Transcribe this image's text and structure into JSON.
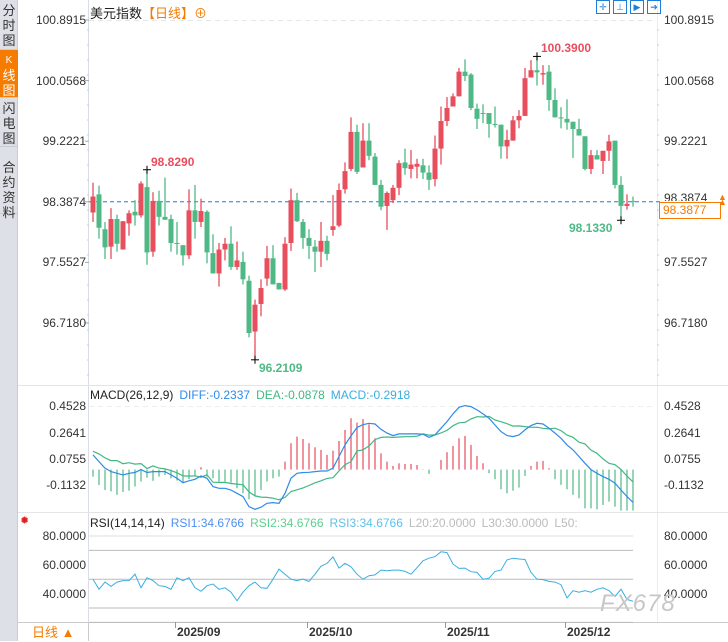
{
  "sidebar": {
    "tabs": [
      {
        "label": "分时图",
        "chars": [
          "分",
          "时",
          "图"
        ],
        "active": false
      },
      {
        "label": "K线图",
        "chars": [
          "K",
          "线",
          "图"
        ],
        "active": true
      },
      {
        "label": "闪电图",
        "chars": [
          "闪",
          "电",
          "图"
        ],
        "active": false
      },
      {
        "label": "合约资料",
        "chars": [
          "合",
          "约",
          "资",
          "料"
        ],
        "active": false
      }
    ]
  },
  "header": {
    "title": "美元指数",
    "timeframe": "【日线】",
    "add_icon": "⊕"
  },
  "toolbar": {
    "icons": [
      "crosshair-icon",
      "fit-range-icon",
      "play-forward-icon",
      "jump-latest-icon"
    ],
    "glyphs": [
      "✛",
      "⊥",
      "▶",
      "➔"
    ]
  },
  "colors": {
    "up": "#e94e5d",
    "down": "#4fb985",
    "diff": "#2f8ae8",
    "dea": "#41b883",
    "current": "#f57c00",
    "price_line": "#1e7fd8",
    "rsi": "#3aaee0"
  },
  "price_axis": {
    "ticks": [
      "100.8915",
      "100.0568",
      "99.2221",
      "98.3874",
      "97.5527",
      "96.7180"
    ],
    "values": [
      100.8915,
      100.0568,
      99.2221,
      98.3874,
      97.5527,
      96.718
    ]
  },
  "current_price": {
    "value": 98.3877,
    "label": "98.3877",
    "arrow": "▲▲"
  },
  "candles": [
    [
      98.24,
      98.65,
      98.11,
      98.46
    ],
    [
      98.49,
      98.61,
      97.88,
      98.03
    ],
    [
      98.01,
      98.11,
      97.6,
      97.76
    ],
    [
      97.77,
      98.3,
      97.6,
      98.15
    ],
    [
      98.15,
      98.21,
      97.7,
      97.81
    ],
    [
      97.73,
      98.12,
      97.73,
      98.12
    ],
    [
      98.09,
      98.27,
      97.92,
      98.23
    ],
    [
      98.25,
      98.41,
      98.06,
      98.2
    ],
    [
      98.2,
      98.67,
      98.17,
      98.64
    ],
    [
      98.59,
      98.829,
      97.52,
      97.69
    ],
    [
      97.7,
      98.52,
      97.63,
      98.4
    ],
    [
      98.4,
      98.54,
      98.06,
      98.18
    ],
    [
      98.18,
      98.72,
      98.14,
      98.14
    ],
    [
      98.15,
      98.21,
      97.7,
      97.82
    ],
    [
      97.82,
      98.11,
      97.66,
      97.81
    ],
    [
      97.79,
      97.79,
      97.51,
      97.65
    ],
    [
      97.65,
      98.56,
      97.6,
      98.27
    ],
    [
      98.27,
      98.62,
      97.88,
      98.11
    ],
    [
      98.11,
      98.43,
      98.04,
      98.26
    ],
    [
      98.25,
      98.27,
      97.54,
      97.69
    ],
    [
      97.68,
      97.94,
      97.4,
      97.4
    ],
    [
      97.4,
      97.82,
      97.22,
      97.73
    ],
    [
      97.73,
      97.89,
      97.58,
      97.81
    ],
    [
      97.81,
      98.05,
      97.45,
      97.49
    ],
    [
      97.49,
      97.84,
      97.45,
      97.58
    ],
    [
      97.56,
      97.7,
      97.25,
      97.32
    ],
    [
      97.3,
      97.37,
      96.52,
      96.58
    ],
    [
      96.6,
      97.04,
      96.2109,
      96.97
    ],
    [
      96.98,
      97.32,
      96.81,
      97.2
    ],
    [
      97.33,
      97.78,
      97.23,
      97.61
    ],
    [
      97.61,
      97.79,
      97.25,
      97.25
    ],
    [
      97.27,
      97.27,
      97.18,
      97.18
    ],
    [
      97.18,
      97.9,
      97.16,
      97.81
    ],
    [
      97.82,
      98.57,
      97.71,
      98.41
    ],
    [
      98.41,
      98.51,
      98.11,
      98.12
    ],
    [
      98.11,
      98.15,
      97.74,
      97.89
    ],
    [
      97.89,
      98.01,
      97.6,
      97.78
    ],
    [
      97.77,
      97.86,
      97.42,
      97.7
    ],
    [
      97.7,
      98.11,
      97.49,
      97.85
    ],
    [
      97.85,
      97.92,
      97.58,
      97.67
    ],
    [
      98.0,
      98.48,
      97.92,
      98.05
    ],
    [
      98.06,
      98.64,
      98.04,
      98.55
    ],
    [
      98.56,
      98.93,
      98.5,
      98.81
    ],
    [
      98.84,
      99.55,
      98.81,
      99.35
    ],
    [
      99.35,
      99.45,
      98.77,
      98.8
    ],
    [
      98.86,
      99.47,
      98.86,
      99.23
    ],
    [
      99.23,
      99.47,
      98.96,
      99.02
    ],
    [
      99.01,
      99.06,
      98.62,
      98.62
    ],
    [
      98.62,
      98.69,
      98.27,
      98.32
    ],
    [
      98.33,
      98.53,
      98.0,
      98.51
    ],
    [
      98.41,
      98.62,
      98.37,
      98.58
    ],
    [
      98.58,
      98.96,
      98.48,
      98.92
    ],
    [
      98.93,
      99.12,
      98.76,
      98.85
    ],
    [
      98.84,
      99.1,
      98.71,
      98.9
    ],
    [
      98.87,
      98.98,
      98.71,
      98.91
    ],
    [
      98.89,
      98.98,
      98.7,
      98.79
    ],
    [
      98.79,
      98.89,
      98.55,
      98.69
    ],
    [
      98.7,
      99.3,
      98.6,
      99.12
    ],
    [
      99.12,
      99.7,
      98.9,
      99.5
    ],
    [
      99.5,
      99.83,
      99.43,
      99.68
    ],
    [
      99.7,
      99.88,
      99.7,
      99.84
    ],
    [
      99.84,
      100.23,
      99.84,
      100.18
    ],
    [
      100.18,
      100.35,
      100.05,
      100.12
    ],
    [
      100.14,
      100.16,
      99.65,
      99.68
    ],
    [
      99.67,
      99.74,
      99.39,
      99.53
    ],
    [
      99.61,
      99.73,
      99.47,
      99.6
    ],
    [
      99.61,
      99.61,
      99.27,
      99.46
    ],
    [
      99.46,
      99.7,
      99.41,
      99.45
    ],
    [
      99.45,
      99.45,
      98.98,
      99.15
    ],
    [
      99.15,
      99.38,
      98.98,
      99.24
    ],
    [
      99.23,
      99.57,
      99.23,
      99.51
    ],
    [
      99.51,
      99.65,
      99.4,
      99.57
    ],
    [
      99.57,
      100.23,
      99.57,
      100.09
    ],
    [
      100.1,
      100.34,
      100.1,
      100.2
    ],
    [
      100.2,
      100.39,
      99.99,
      100.17
    ],
    [
      100.14,
      100.27,
      100.0,
      100.16
    ],
    [
      100.18,
      100.27,
      99.64,
      99.79
    ],
    [
      99.79,
      99.95,
      99.55,
      99.55
    ],
    [
      99.55,
      99.69,
      99.4,
      99.54
    ],
    [
      99.53,
      99.8,
      99.38,
      99.48
    ],
    [
      99.49,
      99.49,
      98.99,
      99.39
    ],
    [
      99.39,
      99.53,
      99.3,
      99.3
    ],
    [
      99.29,
      99.29,
      98.82,
      98.84
    ],
    [
      98.84,
      99.1,
      98.77,
      99.03
    ],
    [
      99.03,
      99.1,
      98.97,
      98.97
    ],
    [
      98.95,
      99.09,
      98.77,
      99.09
    ],
    [
      99.09,
      99.31,
      98.95,
      99.22
    ],
    [
      99.23,
      99.23,
      98.57,
      98.62
    ],
    [
      98.62,
      98.74,
      98.133,
      98.33
    ],
    [
      98.33,
      98.49,
      98.28,
      98.36
    ],
    [
      98.4,
      98.46,
      98.32,
      98.3877
    ]
  ],
  "annotations": [
    {
      "label": "98.8290",
      "candle": 9,
      "kind": "high",
      "color": "#e94e5d"
    },
    {
      "label": "96.2109",
      "candle": 27,
      "kind": "low",
      "color": "#4fb985"
    },
    {
      "label": "100.3900",
      "candle": 74,
      "kind": "high",
      "color": "#e94e5d"
    },
    {
      "label": "98.1330",
      "candle": 88,
      "kind": "low",
      "color": "#4fb985"
    }
  ],
  "macd": {
    "header": {
      "name": "MACD(26,12,9)",
      "diff": "DIFF:-0.2337",
      "dea": "DEA:-0.0878",
      "macd": "MACD:-0.2918"
    },
    "ticks": [
      "0.4528",
      "0.2641",
      "0.0755",
      "-0.1132"
    ],
    "tick_values": [
      0.4528,
      0.2641,
      0.0755,
      -0.1132
    ],
    "diff": [
      0.105,
      0.057,
      0.01,
      -0.014,
      -0.026,
      -0.038,
      -0.026,
      -0.021,
      0,
      -0.021,
      -0.014,
      -0.014,
      -0.014,
      -0.038,
      -0.062,
      -0.093,
      -0.08,
      -0.069,
      -0.045,
      -0.062,
      -0.121,
      -0.133,
      -0.133,
      -0.145,
      -0.169,
      -0.192,
      -0.264,
      -0.283,
      -0.268,
      -0.24,
      -0.235,
      -0.24,
      -0.169,
      -0.062,
      -0.026,
      -0.021,
      -0.019,
      -0.014,
      -0.01,
      -0.01,
      0.01,
      0.093,
      0.176,
      0.24,
      0.3,
      0.32,
      0.33,
      0.325,
      0.287,
      0.26,
      0.242,
      0.254,
      0.254,
      0.254,
      0.254,
      0.252,
      0.23,
      0.247,
      0.295,
      0.342,
      0.397,
      0.444,
      0.456,
      0.449,
      0.425,
      0.397,
      0.366,
      0.318,
      0.271,
      0.242,
      0.235,
      0.247,
      0.283,
      0.314,
      0.33,
      0.325,
      0.295,
      0.26,
      0.223,
      0.176,
      0.14,
      0.093,
      0.045,
      0,
      -0.026,
      -0.05,
      -0.069,
      -0.097,
      -0.145,
      -0.192,
      -0.2337
    ],
    "dea": [
      0.13,
      0.112,
      0.083,
      0.064,
      0.064,
      0.042,
      0.049,
      0.039,
      0.043,
      0.008,
      0.026,
      0.011,
      0.005,
      -0.007,
      -0.023,
      -0.045,
      -0.046,
      -0.044,
      -0.054,
      -0.037,
      -0.09,
      -0.091,
      -0.091,
      -0.099,
      -0.103,
      -0.108,
      -0.159,
      -0.187,
      -0.196,
      -0.198,
      -0.204,
      -0.215,
      -0.198,
      -0.156,
      -0.144,
      -0.13,
      -0.113,
      -0.094,
      -0.08,
      -0.063,
      -0.058,
      -0.009,
      0.035,
      0.057,
      0.133,
      0.14,
      0.169,
      0.214,
      0.229,
      0.232,
      0.229,
      0.232,
      0.234,
      0.234,
      0.238,
      0.254,
      0.246,
      0.247,
      0.261,
      0.28,
      0.313,
      0.333,
      0.336,
      0.361,
      0.377,
      0.375,
      0.379,
      0.353,
      0.341,
      0.327,
      0.31,
      0.311,
      0.306,
      0.301,
      0.302,
      0.294,
      0.29,
      0.295,
      0.278,
      0.246,
      0.23,
      0.195,
      0.183,
      0.138,
      0.116,
      0.076,
      0.045,
      0.035,
      0.001,
      -0.046,
      -0.0878
    ],
    "hist": [
      -0.05,
      -0.11,
      -0.145,
      -0.155,
      -0.18,
      -0.16,
      -0.15,
      -0.12,
      -0.085,
      -0.057,
      -0.08,
      -0.05,
      -0.038,
      -0.062,
      -0.078,
      -0.097,
      -0.069,
      -0.05,
      0.017,
      -0.05,
      -0.062,
      -0.085,
      -0.085,
      -0.093,
      -0.133,
      -0.169,
      -0.211,
      -0.192,
      -0.145,
      -0.085,
      -0.062,
      -0.05,
      0.057,
      0.188,
      0.235,
      0.218,
      0.188,
      0.159,
      0.14,
      0.105,
      0.135,
      0.204,
      0.283,
      0.366,
      0.335,
      0.36,
      0.323,
      0.223,
      0.116,
      0.057,
      0.026,
      0.045,
      0.04,
      0.04,
      0.033,
      -0.003,
      -0.031,
      0.0,
      0.069,
      0.124,
      0.169,
      0.223,
      0.24,
      0.176,
      0.097,
      0.045,
      -0.026,
      -0.069,
      -0.14,
      -0.169,
      -0.15,
      -0.128,
      -0.045,
      0.026,
      0.057,
      0.062,
      0.01,
      -0.069,
      -0.109,
      -0.14,
      -0.18,
      -0.204,
      -0.276,
      -0.276,
      -0.283,
      -0.252,
      -0.228,
      -0.264,
      -0.292,
      -0.292,
      -0.2918
    ]
  },
  "rsi": {
    "header": {
      "name": "RSI(14,14,14)",
      "rsi1": "RSI1:34.6766",
      "rsi2": "RSI2:34.6766",
      "rsi3": "RSI3:34.6766",
      "l20": "L20:20.0000",
      "l30": "L30:30.0000",
      "l50": "L50:"
    },
    "ticks": [
      "80.0000",
      "60.0000",
      "40.0000"
    ],
    "tick_values": [
      80,
      60,
      40
    ],
    "levels": [
      80,
      70,
      50,
      30,
      20
    ],
    "values": [
      50,
      43,
      48,
      45,
      48,
      49,
      49,
      53.5,
      44,
      51,
      49,
      45.5,
      45,
      43,
      51,
      49,
      51,
      44,
      41.6,
      45.5,
      46.7,
      43,
      44,
      41,
      35,
      41,
      45.5,
      48,
      44,
      43.7,
      50,
      57,
      53.5,
      50,
      49,
      50,
      48.5,
      53.5,
      59,
      61,
      65.5,
      57.7,
      61,
      58.6,
      53.5,
      50,
      52.4,
      53,
      56.3,
      55.9,
      56.3,
      56.3,
      55.4,
      53.5,
      58,
      62.8,
      64.6,
      65.7,
      69,
      68.5,
      60.5,
      57.5,
      57.7,
      55.2,
      54.7,
      50,
      50.6,
      55.4,
      56.3,
      63.4,
      64.6,
      64,
      63.7,
      54.7,
      50,
      49.7,
      48.5,
      48,
      46.2,
      37,
      42,
      41,
      42,
      41,
      43,
      44,
      42,
      38,
      43,
      36,
      34.6766
    ]
  },
  "x_axis": {
    "labels": [
      {
        "label": "2025/09",
        "candle": 15
      },
      {
        "label": "2025/10",
        "candle": 37
      },
      {
        "label": "2025/11",
        "candle": 60
      },
      {
        "label": "2025/12",
        "candle": 80
      }
    ]
  },
  "bottom": {
    "timeframe": "日线",
    "arrow": "▲"
  },
  "watermark": "FX678"
}
